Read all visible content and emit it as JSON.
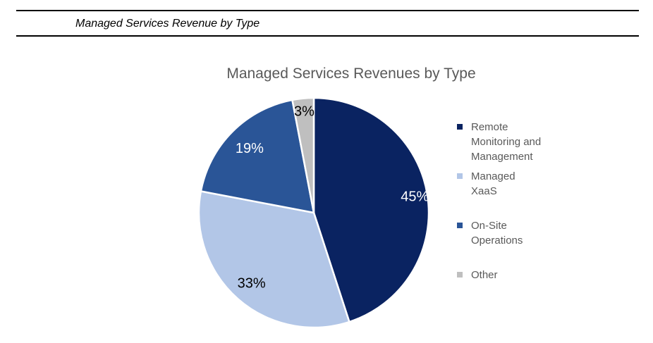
{
  "page_header": {
    "title": "Managed Services Revenue by Type"
  },
  "chart_data": {
    "type": "pie",
    "title": "Managed Services Revenues by Type",
    "start_angle_deg": 0,
    "direction": "clockwise",
    "legend_position": "right",
    "title_color": "#595959",
    "legend_text_color": "#595959",
    "slice_border_color": "#ffffff",
    "slices": [
      {
        "label": "Remote Monitoring and Management",
        "legend_label": "Remote\nMonitoring and\nManagement",
        "value": 45,
        "pct_label": "45%",
        "color": "#0A2361",
        "label_color": "#ffffff"
      },
      {
        "label": "Managed XaaS",
        "legend_label": "Managed\nXaaS",
        "value": 33,
        "pct_label": "33%",
        "color": "#B2C6E7",
        "label_color": "#000000"
      },
      {
        "label": "On-Site Operations",
        "legend_label": "On-Site\nOperations",
        "value": 19,
        "pct_label": "19%",
        "color": "#2A5597",
        "label_color": "#ffffff"
      },
      {
        "label": "Other",
        "legend_label": "Other",
        "value": 3,
        "pct_label": "3%",
        "color": "#BFBFBF",
        "label_color": "#000000"
      }
    ]
  }
}
